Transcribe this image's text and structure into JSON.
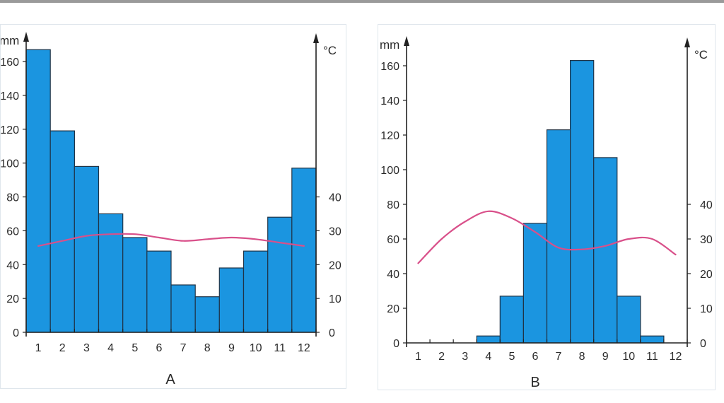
{
  "chart_data": [
    {
      "type": "bar",
      "label": "A",
      "left_unit": "mm",
      "right_unit": "°C",
      "categories": [
        "1",
        "2",
        "3",
        "4",
        "5",
        "6",
        "7",
        "8",
        "9",
        "10",
        "11",
        "12"
      ],
      "left_axis": {
        "ylim": [
          0,
          160
        ],
        "ticks": [
          "0",
          "20",
          "40",
          "60",
          "80",
          "100",
          "120",
          "140",
          "160"
        ]
      },
      "right_axis": {
        "ylim": [
          0,
          40
        ],
        "ticks": [
          "0",
          "10",
          "20",
          "30",
          "40"
        ]
      },
      "series": [
        {
          "kind": "bar",
          "axis": "left",
          "values": [
            167,
            119,
            98,
            70,
            56,
            48,
            28,
            21,
            38,
            48,
            68,
            97
          ]
        },
        {
          "kind": "line",
          "axis": "right",
          "values": [
            25.5,
            27,
            28.5,
            29,
            29,
            28,
            27,
            27.5,
            28,
            27.5,
            26.5,
            25.5
          ]
        }
      ],
      "colors": {
        "bar": "#1b95e0",
        "bar_edge": "#1f3346",
        "line": "#d9508a",
        "axis": "#222222"
      }
    },
    {
      "type": "bar",
      "label": "B",
      "left_unit": "mm",
      "right_unit": "°C",
      "categories": [
        "1",
        "2",
        "3",
        "4",
        "5",
        "6",
        "7",
        "8",
        "9",
        "10",
        "11",
        "12"
      ],
      "left_axis": {
        "ylim": [
          0,
          160
        ],
        "ticks": [
          "0",
          "20",
          "40",
          "60",
          "80",
          "100",
          "120",
          "140",
          "160"
        ]
      },
      "right_axis": {
        "ylim": [
          0,
          40
        ],
        "ticks": [
          "0",
          "10",
          "20",
          "30",
          "40"
        ]
      },
      "series": [
        {
          "kind": "bar",
          "axis": "left",
          "values": [
            0,
            0,
            0,
            4,
            27,
            69,
            123,
            163,
            107,
            27,
            4,
            0
          ]
        },
        {
          "kind": "line",
          "axis": "right",
          "values": [
            23,
            30,
            35,
            38,
            36,
            32,
            27.5,
            27,
            28,
            30,
            30,
            25.5
          ]
        }
      ],
      "colors": {
        "bar": "#1b95e0",
        "bar_edge": "#1f3346",
        "line": "#d9508a",
        "axis": "#222222"
      }
    }
  ]
}
